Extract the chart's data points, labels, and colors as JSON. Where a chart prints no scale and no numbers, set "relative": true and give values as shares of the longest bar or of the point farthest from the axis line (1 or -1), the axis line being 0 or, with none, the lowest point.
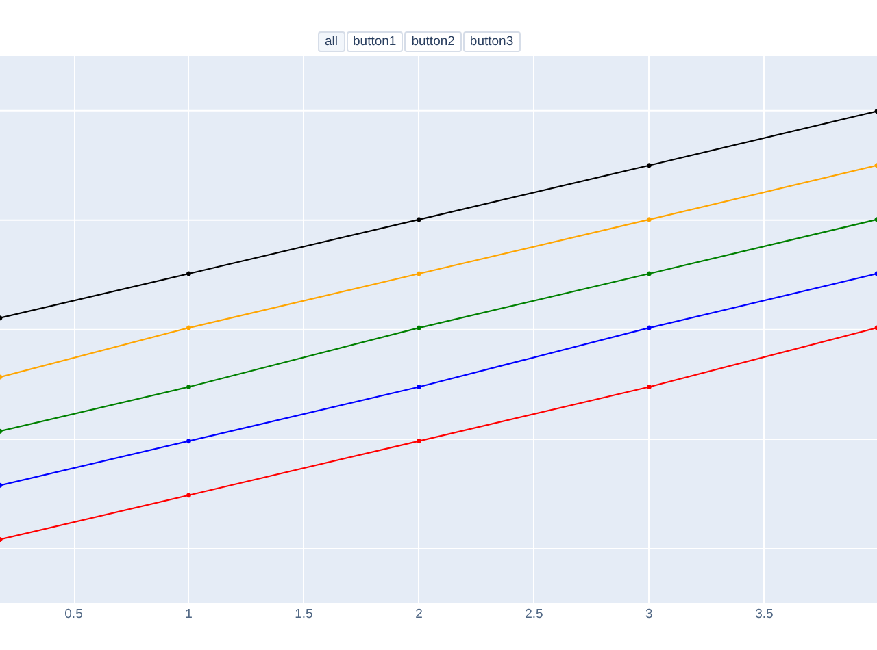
{
  "chart_data": {
    "type": "line",
    "annotations": [
      "all",
      "button1",
      "button2",
      "button3"
    ],
    "x": [
      0.18,
      1,
      2,
      3,
      3.99
    ],
    "relative": true,
    "series": [
      {
        "color": "#ff0000",
        "values": [
          0.13,
          0.22,
          0.33,
          0.44,
          0.56
        ]
      },
      {
        "color": "#0000ff",
        "values": [
          0.24,
          0.33,
          0.44,
          0.56,
          0.67
        ]
      },
      {
        "color": "#008000",
        "values": [
          0.35,
          0.44,
          0.56,
          0.67,
          0.78
        ]
      },
      {
        "color": "#ffa500",
        "values": [
          0.46,
          0.56,
          0.67,
          0.78,
          0.89
        ]
      },
      {
        "color": "#000000",
        "values": [
          0.58,
          0.67,
          0.78,
          0.89,
          1
        ]
      }
    ],
    "xlim": [
      0.18,
      3.99
    ],
    "xticks": [
      0.5,
      1,
      1.5,
      2,
      2.5,
      3,
      3.5
    ],
    "tick_labels": "x",
    "grid": true,
    "marker": "circle",
    "line_style": "solid"
  }
}
